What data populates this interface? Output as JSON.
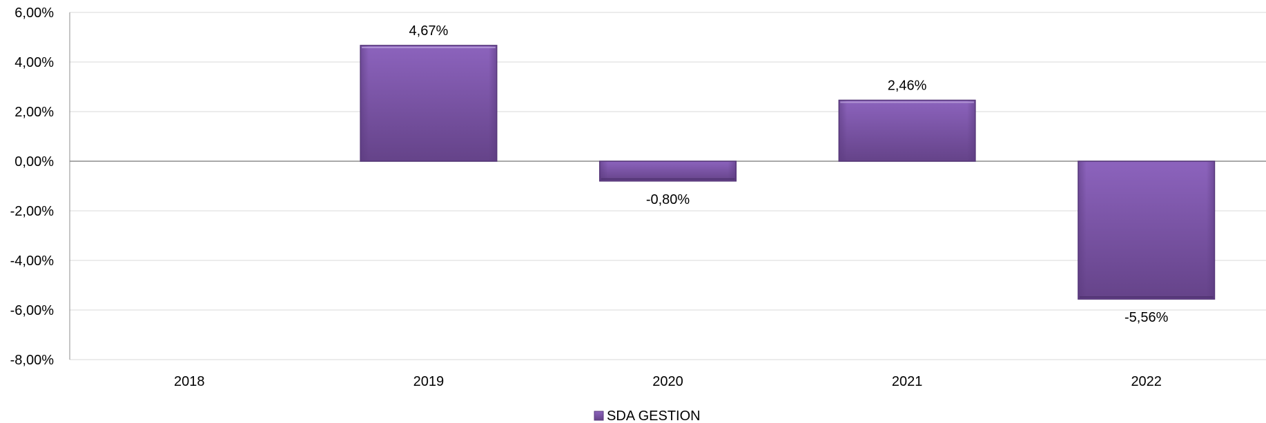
{
  "chart_data": {
    "type": "bar",
    "categories": [
      "2018",
      "2019",
      "2020",
      "2021",
      "2022"
    ],
    "series": [
      {
        "name": "SDA GESTION",
        "values": [
          null,
          4.67,
          -0.8,
          2.46,
          -5.56
        ],
        "labels": [
          "",
          "4,67%",
          "-0,80%",
          "2,46%",
          "-5,56%"
        ],
        "color": "#7b55a6"
      }
    ],
    "ylim": [
      -8,
      6
    ],
    "yticks": [
      6,
      4,
      2,
      0,
      -2,
      -4,
      -6,
      -8
    ],
    "ytick_labels": [
      "6,00%",
      "4,00%",
      "2,00%",
      "0,00%",
      "-2,00%",
      "-4,00%",
      "-6,00%",
      "-8,00%"
    ],
    "grid": true,
    "legend_position": "bottom"
  }
}
